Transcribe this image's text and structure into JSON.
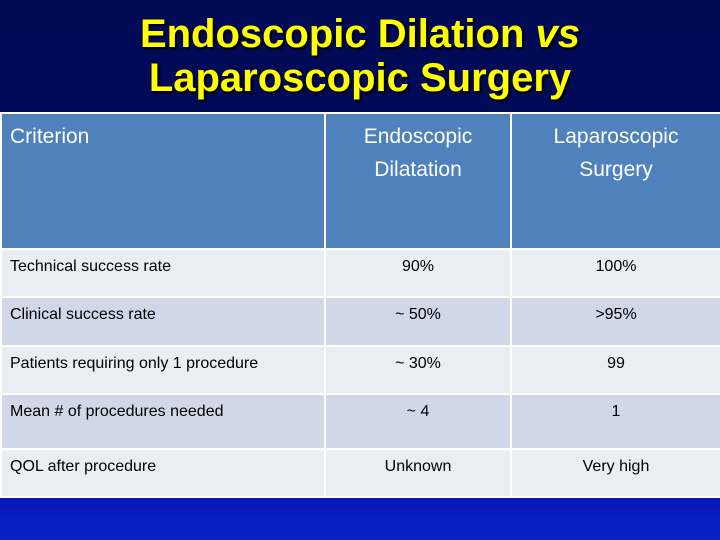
{
  "slide": {
    "title_line1": "Endoscopic Dilation",
    "title_line1_emphasis": "vs",
    "title_line2": "Laparoscopic Surgery"
  },
  "table": {
    "headers": {
      "criterion": "Criterion",
      "endoscopic_line1": "Endoscopic",
      "endoscopic_line2": "Dilatation",
      "laparoscopic_line1": "Laparoscopic",
      "laparoscopic_line2": "Surgery"
    },
    "rows": [
      {
        "criterion": "Technical success rate",
        "endoscopic": "90%",
        "laparoscopic": "100%"
      },
      {
        "criterion": "Clinical success rate",
        "endoscopic": "~ 50%",
        "laparoscopic": ">95%"
      },
      {
        "criterion": "Patients requiring only 1 procedure",
        "endoscopic": "~ 30%",
        "laparoscopic": "99"
      },
      {
        "criterion": "Mean # of procedures needed",
        "endoscopic": "~ 4",
        "laparoscopic": "1"
      },
      {
        "criterion": "QOL after procedure",
        "endoscopic": "Unknown",
        "laparoscopic": "Very high"
      }
    ]
  },
  "colors": {
    "title_text": "#ffff00",
    "header_fill": "#4f81bd",
    "row_light": "#e9edf4",
    "row_dark": "#d0d8e8",
    "background_top": "#000a55",
    "background_bottom": "#0a22c8"
  }
}
